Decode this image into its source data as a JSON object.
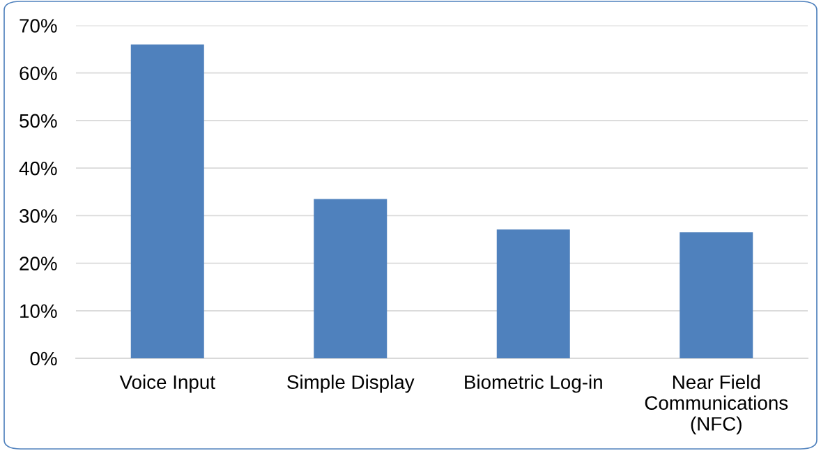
{
  "chart_data": {
    "type": "bar",
    "categories": [
      "Voice Input",
      "Simple Display",
      "Biometric Log-in",
      "Near Field\nCommunications\n(NFC)"
    ],
    "values": [
      66,
      33.5,
      27.1,
      26.5
    ],
    "color": "#4f81bd",
    "ylim": [
      0,
      70
    ],
    "yticks": [
      {
        "value": 0,
        "label": "0%"
      },
      {
        "value": 10,
        "label": "10%"
      },
      {
        "value": 20,
        "label": "20%"
      },
      {
        "value": 30,
        "label": "30%"
      },
      {
        "value": 40,
        "label": "40%"
      },
      {
        "value": 50,
        "label": "50%"
      },
      {
        "value": 60,
        "label": "60%"
      },
      {
        "value": 70,
        "label": "70%"
      }
    ],
    "grid": "y",
    "legend": false
  }
}
